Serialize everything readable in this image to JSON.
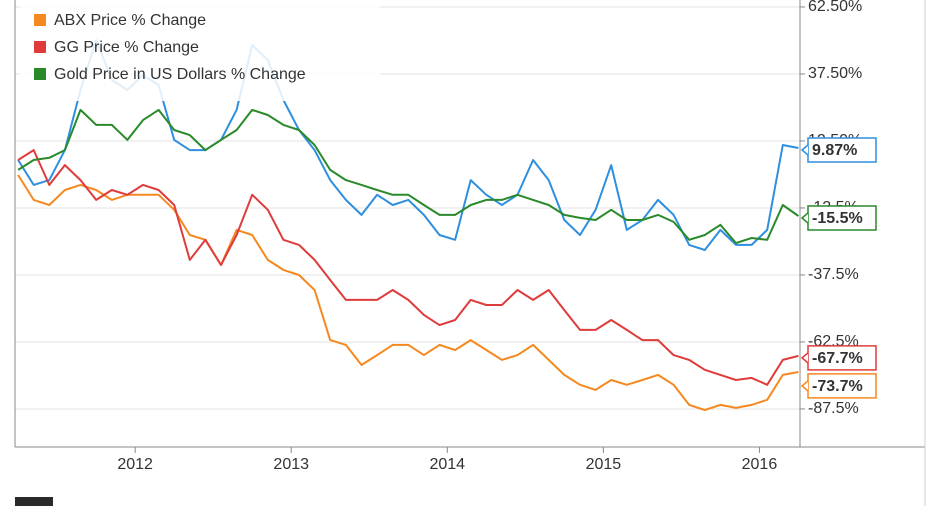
{
  "chart_data": {
    "type": "line",
    "x": [
      2011.25,
      2011.35,
      2011.45,
      2011.55,
      2011.65,
      2011.75,
      2011.85,
      2011.95,
      2012.05,
      2012.15,
      2012.25,
      2012.35,
      2012.45,
      2012.55,
      2012.65,
      2012.75,
      2012.85,
      2012.95,
      2013.05,
      2013.15,
      2013.25,
      2013.35,
      2013.45,
      2013.55,
      2013.65,
      2013.75,
      2013.85,
      2013.95,
      2014.05,
      2014.15,
      2014.25,
      2014.35,
      2014.45,
      2014.55,
      2014.65,
      2014.75,
      2014.85,
      2014.95,
      2015.05,
      2015.15,
      2015.25,
      2015.35,
      2015.45,
      2015.55,
      2015.65,
      2015.75,
      2015.85,
      2015.95,
      2016.05,
      2016.15,
      2016.25
    ],
    "xlim": [
      2011.23,
      2016.26
    ],
    "xticks": [
      2012,
      2013,
      2014,
      2015,
      2016
    ],
    "ylim": [
      -101.7,
      65.1
    ],
    "yticks": [
      {
        "value": 62.5,
        "label": "62.50%"
      },
      {
        "value": 37.5,
        "label": "37.50%"
      },
      {
        "value": 12.5,
        "label": "12.50%"
      },
      {
        "value": -12.5,
        "label": "-12.5%"
      },
      {
        "value": -37.5,
        "label": "-37.5%"
      },
      {
        "value": -62.5,
        "label": "-62.5%"
      },
      {
        "value": -87.5,
        "label": "-87.5%"
      }
    ],
    "grid": true,
    "legend": "top-left",
    "series": [
      {
        "color": "#2f8fdf",
        "values": [
          5.4,
          -3.9,
          -2.1,
          9.1,
          31.5,
          50.2,
          35.3,
          31.5,
          37.1,
          33.4,
          12.9,
          9.1,
          9.1,
          12.9,
          24.1,
          48.3,
          42.7,
          27.8,
          16.6,
          9.1,
          -2.1,
          -9.5,
          -15.1,
          -7.6,
          -11.4,
          -9.5,
          -15.1,
          -22.6,
          -24.4,
          -2.1,
          -7.6,
          -11.4,
          -7.6,
          5.4,
          -2.1,
          -17.0,
          -22.6,
          -13.2,
          3.5,
          -20.7,
          -17.0,
          -9.5,
          -15.1,
          -26.3,
          -28.2,
          -20.7,
          -26.3,
          -26.3,
          -20.7,
          11.0,
          9.87
        ],
        "value_labels": [
          null,
          null,
          null,
          null,
          null,
          null,
          null,
          null,
          null,
          null,
          null,
          null,
          null,
          null,
          null,
          null,
          null,
          null,
          null,
          null,
          null,
          null,
          null,
          null,
          null,
          null,
          null,
          null,
          null,
          null,
          null,
          null,
          null,
          null,
          null,
          null,
          null,
          null,
          null,
          null,
          null,
          null,
          null,
          null,
          null,
          null,
          null,
          null,
          null,
          null,
          "9.87%"
        ]
      },
      {
        "name": "ABX Price % Change",
        "color": "#f5891f",
        "values": [
          -0.2,
          -9.5,
          -11.4,
          -5.8,
          -3.9,
          -5.8,
          -9.5,
          -7.6,
          -7.6,
          -7.6,
          -13.2,
          -22.6,
          -24.4,
          -33.8,
          -20.7,
          -22.6,
          -31.9,
          -35.6,
          -37.5,
          -43.1,
          -61.8,
          -63.6,
          -71.1,
          -67.4,
          -63.6,
          -63.6,
          -67.4,
          -63.6,
          -65.5,
          -61.8,
          -65.5,
          -69.2,
          -67.4,
          -63.6,
          -69.2,
          -74.8,
          -78.5,
          -80.4,
          -76.7,
          -78.5,
          -76.7,
          -74.8,
          -78.5,
          -86.0,
          -87.9,
          -86.0,
          -87.1,
          -86.0,
          -84.1,
          -74.8,
          -73.7
        ],
        "value_labels": [
          null,
          null,
          null,
          null,
          null,
          null,
          null,
          null,
          null,
          null,
          null,
          null,
          null,
          null,
          null,
          null,
          null,
          null,
          null,
          null,
          null,
          null,
          null,
          null,
          null,
          null,
          null,
          null,
          null,
          null,
          null,
          null,
          null,
          null,
          null,
          null,
          null,
          null,
          null,
          null,
          null,
          null,
          null,
          null,
          null,
          null,
          null,
          null,
          null,
          null,
          "-73.7%"
        ]
      },
      {
        "name": "GG Price % Change",
        "color": "#e03b3b",
        "values": [
          5.4,
          9.1,
          -3.9,
          3.5,
          -2.1,
          -9.5,
          -5.8,
          -7.6,
          -3.9,
          -5.8,
          -11.4,
          -31.9,
          -24.4,
          -33.8,
          -22.6,
          -7.6,
          -13.2,
          -24.4,
          -26.3,
          -31.9,
          -39.4,
          -46.8,
          -46.8,
          -46.8,
          -43.1,
          -46.8,
          -52.4,
          -56.2,
          -54.3,
          -46.8,
          -48.7,
          -48.7,
          -43.1,
          -46.8,
          -43.1,
          -50.6,
          -58.0,
          -58.0,
          -54.3,
          -58.0,
          -61.8,
          -61.8,
          -67.4,
          -69.2,
          -72.9,
          -74.8,
          -76.7,
          -75.9,
          -78.5,
          -69.2,
          -67.7
        ],
        "value_labels": [
          null,
          null,
          null,
          null,
          null,
          null,
          null,
          null,
          null,
          null,
          null,
          null,
          null,
          null,
          null,
          null,
          null,
          null,
          null,
          null,
          null,
          null,
          null,
          null,
          null,
          null,
          null,
          null,
          null,
          null,
          null,
          null,
          null,
          null,
          null,
          null,
          null,
          null,
          null,
          null,
          null,
          null,
          null,
          null,
          null,
          null,
          null,
          null,
          null,
          null,
          "-67.7%"
        ]
      },
      {
        "name": "Gold Price in US Dollars % Change",
        "color": "#2a8a2a",
        "values": [
          1.7,
          5.4,
          6.2,
          9.1,
          24.1,
          18.5,
          18.5,
          12.9,
          20.3,
          24.1,
          16.6,
          14.7,
          9.1,
          12.9,
          16.6,
          24.1,
          22.2,
          18.5,
          16.6,
          11.0,
          1.7,
          -2.1,
          -3.9,
          -5.8,
          -7.6,
          -7.6,
          -11.4,
          -15.1,
          -15.1,
          -11.4,
          -9.5,
          -9.5,
          -7.6,
          -9.5,
          -11.4,
          -15.1,
          -16.2,
          -17.0,
          -13.2,
          -17.0,
          -17.0,
          -15.1,
          -17.7,
          -24.4,
          -22.6,
          -18.8,
          -25.6,
          -23.7,
          -24.4,
          -11.4,
          -15.5
        ],
        "value_labels": [
          null,
          null,
          null,
          null,
          null,
          null,
          null,
          null,
          null,
          null,
          null,
          null,
          null,
          null,
          null,
          null,
          null,
          null,
          null,
          null,
          null,
          null,
          null,
          null,
          null,
          null,
          null,
          null,
          null,
          null,
          null,
          null,
          null,
          null,
          null,
          null,
          null,
          null,
          null,
          null,
          null,
          null,
          null,
          null,
          null,
          null,
          null,
          null,
          null,
          null,
          "-15.5%"
        ]
      }
    ]
  }
}
